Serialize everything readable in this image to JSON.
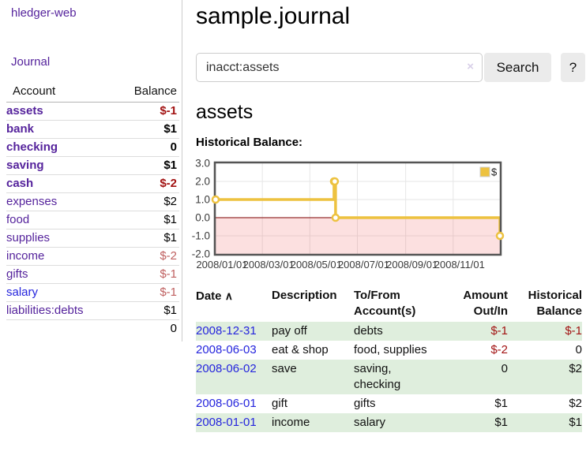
{
  "app": {
    "brand": "hledger-web",
    "nav_journal": "Journal"
  },
  "colors": {
    "link_purple": "#55239c",
    "link_blue": "#2525dd",
    "negative_strong": "#a21313",
    "negative_soft": "#bf6060",
    "row_green": "#dfeedd",
    "series_gold": "#edc240"
  },
  "sidebar": {
    "header": {
      "account": "Account",
      "balance": "Balance"
    },
    "accounts": [
      {
        "name": "assets",
        "depth": 1,
        "bold": true,
        "balance": "$-1",
        "balance_style": "neg-strong"
      },
      {
        "name": "bank",
        "depth": 2,
        "bold": true,
        "balance": "$1",
        "balance_style": "pos"
      },
      {
        "name": "checking",
        "depth": 3,
        "bold": true,
        "balance": "0",
        "balance_style": "pos"
      },
      {
        "name": "saving",
        "depth": 3,
        "bold": true,
        "balance": "$1",
        "balance_style": "pos"
      },
      {
        "name": "cash",
        "depth": 2,
        "bold": true,
        "balance": "$-2",
        "balance_style": "neg-strong"
      },
      {
        "name": "expenses",
        "depth": 1,
        "bold": false,
        "balance": "$2",
        "balance_style": "pos"
      },
      {
        "name": "food",
        "depth": 2,
        "bold": false,
        "balance": "$1",
        "balance_style": "pos"
      },
      {
        "name": "supplies",
        "depth": 2,
        "bold": false,
        "balance": "$1",
        "balance_style": "pos"
      },
      {
        "name": "income",
        "depth": 1,
        "bold": false,
        "balance": "$-2",
        "balance_style": "neg-soft"
      },
      {
        "name": "gifts",
        "depth": 2,
        "bold": false,
        "balance": "$-1",
        "balance_style": "neg-soft"
      },
      {
        "name": "salary",
        "depth": 2,
        "bold": false,
        "balance": "$-1",
        "balance_style": "neg-soft",
        "link_color": "blue"
      },
      {
        "name": "liabilities:debts",
        "depth": 1,
        "bold": false,
        "balance": "$1",
        "balance_style": "pos"
      }
    ],
    "total": "0"
  },
  "header": {
    "title": "sample.journal"
  },
  "search": {
    "value": "inacct:assets",
    "clear_icon": "×",
    "button": "Search",
    "help": "?"
  },
  "account_page": {
    "title": "assets",
    "chart_label": "Historical Balance:"
  },
  "chart_data": {
    "type": "line",
    "title": "Historical Balance",
    "step": true,
    "series": [
      {
        "name": "$",
        "color": "#edc240",
        "points": [
          [
            "2008-01-01",
            1
          ],
          [
            "2008-06-01",
            2
          ],
          [
            "2008-06-02",
            2
          ],
          [
            "2008-06-03",
            0
          ],
          [
            "2008-12-31",
            -1
          ]
        ]
      }
    ],
    "x_ticks": [
      "2008/01/01",
      "2008/03/01",
      "2008/05/01",
      "2008/07/01",
      "2008/09/01",
      "2008/11/01"
    ],
    "y_ticks": [
      3.0,
      2.0,
      1.0,
      0.0,
      -1.0,
      -2.0
    ],
    "ylim": [
      -2,
      3
    ],
    "x_start": "2008-01-01",
    "x_end": "2008-12-31",
    "grid": true,
    "negative_region": true,
    "zero_line_color": "#7d0000",
    "legend": {
      "position": "top-right",
      "label": "$"
    }
  },
  "register": {
    "columns": {
      "date": "Date",
      "sort_icon": "∧",
      "description": "Description",
      "accounts": "To/From Account(s)",
      "amount": "Amount Out/In",
      "balance": "Historical Balance"
    },
    "rows": [
      {
        "date": "2008-12-31",
        "description": "pay off",
        "accounts": "debts",
        "amount": "$-1",
        "amount_neg": true,
        "balance": "$-1",
        "balance_neg": true
      },
      {
        "date": "2008-06-03",
        "description": "eat & shop",
        "accounts": "food, supplies",
        "amount": "$-2",
        "amount_neg": true,
        "balance": "0",
        "balance_neg": false
      },
      {
        "date": "2008-06-02",
        "description": "save",
        "accounts": "saving, checking",
        "amount": "0",
        "amount_neg": false,
        "balance": "$2",
        "balance_neg": false
      },
      {
        "date": "2008-06-01",
        "description": "gift",
        "accounts": "gifts",
        "amount": "$1",
        "amount_neg": false,
        "balance": "$2",
        "balance_neg": false
      },
      {
        "date": "2008-01-01",
        "description": "income",
        "accounts": "salary",
        "amount": "$1",
        "amount_neg": false,
        "balance": "$1",
        "balance_neg": false
      }
    ]
  }
}
